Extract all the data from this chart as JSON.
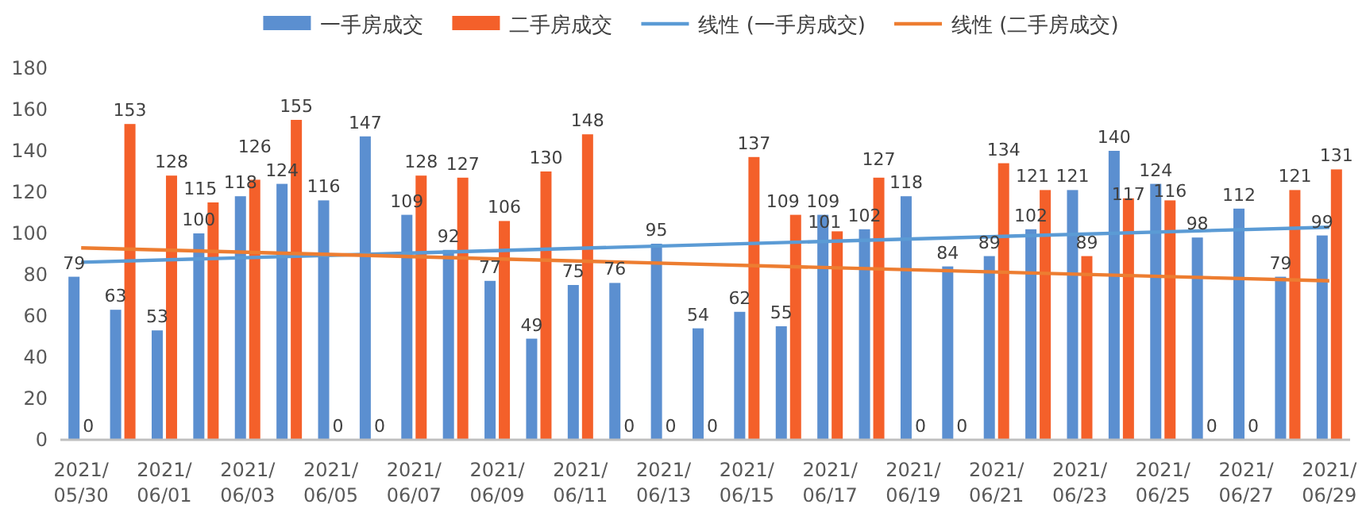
{
  "chart_data": {
    "type": "bar",
    "categories": [
      "2021/05/30",
      null,
      "2021/06/01",
      null,
      "2021/06/03",
      null,
      "2021/06/05",
      null,
      "2021/06/07",
      null,
      "2021/06/09",
      null,
      "2021/06/11",
      null,
      "2021/06/13",
      null,
      "2021/06/15",
      null,
      "2021/06/17",
      null,
      "2021/06/19",
      null,
      "2021/06/21",
      null,
      "2021/06/23",
      null,
      "2021/06/25",
      null,
      "2021/06/27",
      null,
      "2021/06/29"
    ],
    "series": [
      {
        "name": "一手房成交",
        "color": "#5b8fd0",
        "data_labels": true,
        "values": [
          79,
          63,
          53,
          100,
          118,
          124,
          116,
          147,
          109,
          92,
          77,
          49,
          75,
          76,
          95,
          54,
          62,
          55,
          109,
          102,
          118,
          84,
          89,
          102,
          121,
          140,
          124,
          98,
          112,
          79,
          99
        ]
      },
      {
        "name": "二手房成交",
        "color": "#f4602a",
        "data_labels": true,
        "values": [
          0,
          153,
          128,
          115,
          126,
          155,
          0,
          0,
          128,
          127,
          106,
          130,
          148,
          0,
          0,
          0,
          137,
          109,
          101,
          127,
          0,
          0,
          134,
          121,
          89,
          117,
          116,
          0,
          0,
          121,
          131
        ]
      },
      {
        "name": "线性 (一手房成交)",
        "type": "line",
        "color": "#5b9bd5",
        "x": [
          "2021/05/30",
          "2021/06/29"
        ],
        "values": [
          86,
          103
        ]
      },
      {
        "name": "线性 (二手房成交)",
        "type": "line",
        "color": "#ed7d31",
        "x": [
          "2021/05/30",
          "2021/06/29"
        ],
        "values": [
          93,
          77
        ]
      }
    ],
    "ylim": [
      0,
      180
    ],
    "yticks": [
      0,
      20,
      40,
      60,
      80,
      100,
      120,
      140,
      160,
      180
    ],
    "legend": "top",
    "grid": false
  }
}
